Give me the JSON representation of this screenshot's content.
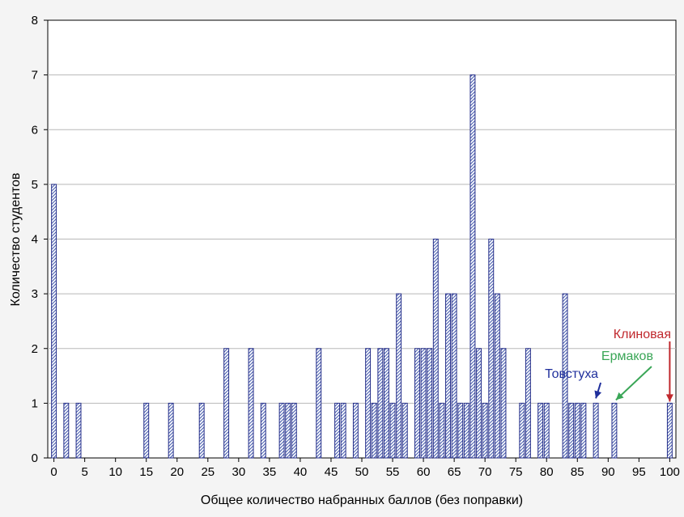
{
  "chart_data": {
    "type": "bar",
    "title": "",
    "xlabel": "Общее количество набранных баллов (без поправки)",
    "ylabel": "Количество студентов",
    "xlim": [
      -1,
      101
    ],
    "ylim": [
      0,
      8
    ],
    "xticks": [
      0,
      5,
      10,
      15,
      20,
      25,
      30,
      35,
      40,
      45,
      50,
      55,
      60,
      65,
      70,
      75,
      80,
      85,
      90,
      95,
      100
    ],
    "yticks": [
      0,
      1,
      2,
      3,
      4,
      5,
      6,
      7,
      8
    ],
    "grid": "horizontal",
    "bar_color": "#4a5fb0",
    "points": [
      {
        "x": 0,
        "y": 5
      },
      {
        "x": 2,
        "y": 1
      },
      {
        "x": 4,
        "y": 1
      },
      {
        "x": 15,
        "y": 1
      },
      {
        "x": 19,
        "y": 1
      },
      {
        "x": 24,
        "y": 1
      },
      {
        "x": 28,
        "y": 2
      },
      {
        "x": 32,
        "y": 2
      },
      {
        "x": 34,
        "y": 1
      },
      {
        "x": 37,
        "y": 1
      },
      {
        "x": 38,
        "y": 1
      },
      {
        "x": 39,
        "y": 1
      },
      {
        "x": 43,
        "y": 2
      },
      {
        "x": 46,
        "y": 1
      },
      {
        "x": 47,
        "y": 1
      },
      {
        "x": 49,
        "y": 1
      },
      {
        "x": 51,
        "y": 2
      },
      {
        "x": 52,
        "y": 1
      },
      {
        "x": 53,
        "y": 2
      },
      {
        "x": 54,
        "y": 2
      },
      {
        "x": 55,
        "y": 1
      },
      {
        "x": 56,
        "y": 3
      },
      {
        "x": 57,
        "y": 1
      },
      {
        "x": 59,
        "y": 2
      },
      {
        "x": 60,
        "y": 2
      },
      {
        "x": 61,
        "y": 2
      },
      {
        "x": 62,
        "y": 4
      },
      {
        "x": 63,
        "y": 1
      },
      {
        "x": 64,
        "y": 3
      },
      {
        "x": 65,
        "y": 3
      },
      {
        "x": 66,
        "y": 1
      },
      {
        "x": 67,
        "y": 1
      },
      {
        "x": 68,
        "y": 7
      },
      {
        "x": 69,
        "y": 2
      },
      {
        "x": 70,
        "y": 1
      },
      {
        "x": 71,
        "y": 4
      },
      {
        "x": 72,
        "y": 3
      },
      {
        "x": 73,
        "y": 2
      },
      {
        "x": 76,
        "y": 1
      },
      {
        "x": 77,
        "y": 2
      },
      {
        "x": 79,
        "y": 1
      },
      {
        "x": 80,
        "y": 1
      },
      {
        "x": 83,
        "y": 3
      },
      {
        "x": 84,
        "y": 1
      },
      {
        "x": 85,
        "y": 1
      },
      {
        "x": 86,
        "y": 1
      },
      {
        "x": 88,
        "y": 1
      },
      {
        "x": 91,
        "y": 1
      },
      {
        "x": 100,
        "y": 1
      }
    ],
    "annotations": [
      {
        "text": "Клиновая",
        "x": 100,
        "color": "#c0282d"
      },
      {
        "text": "Ермаков",
        "x": 91,
        "color": "#3aa657"
      },
      {
        "text": "Товстуха",
        "x": 88,
        "color": "#1f2f9c"
      }
    ]
  }
}
